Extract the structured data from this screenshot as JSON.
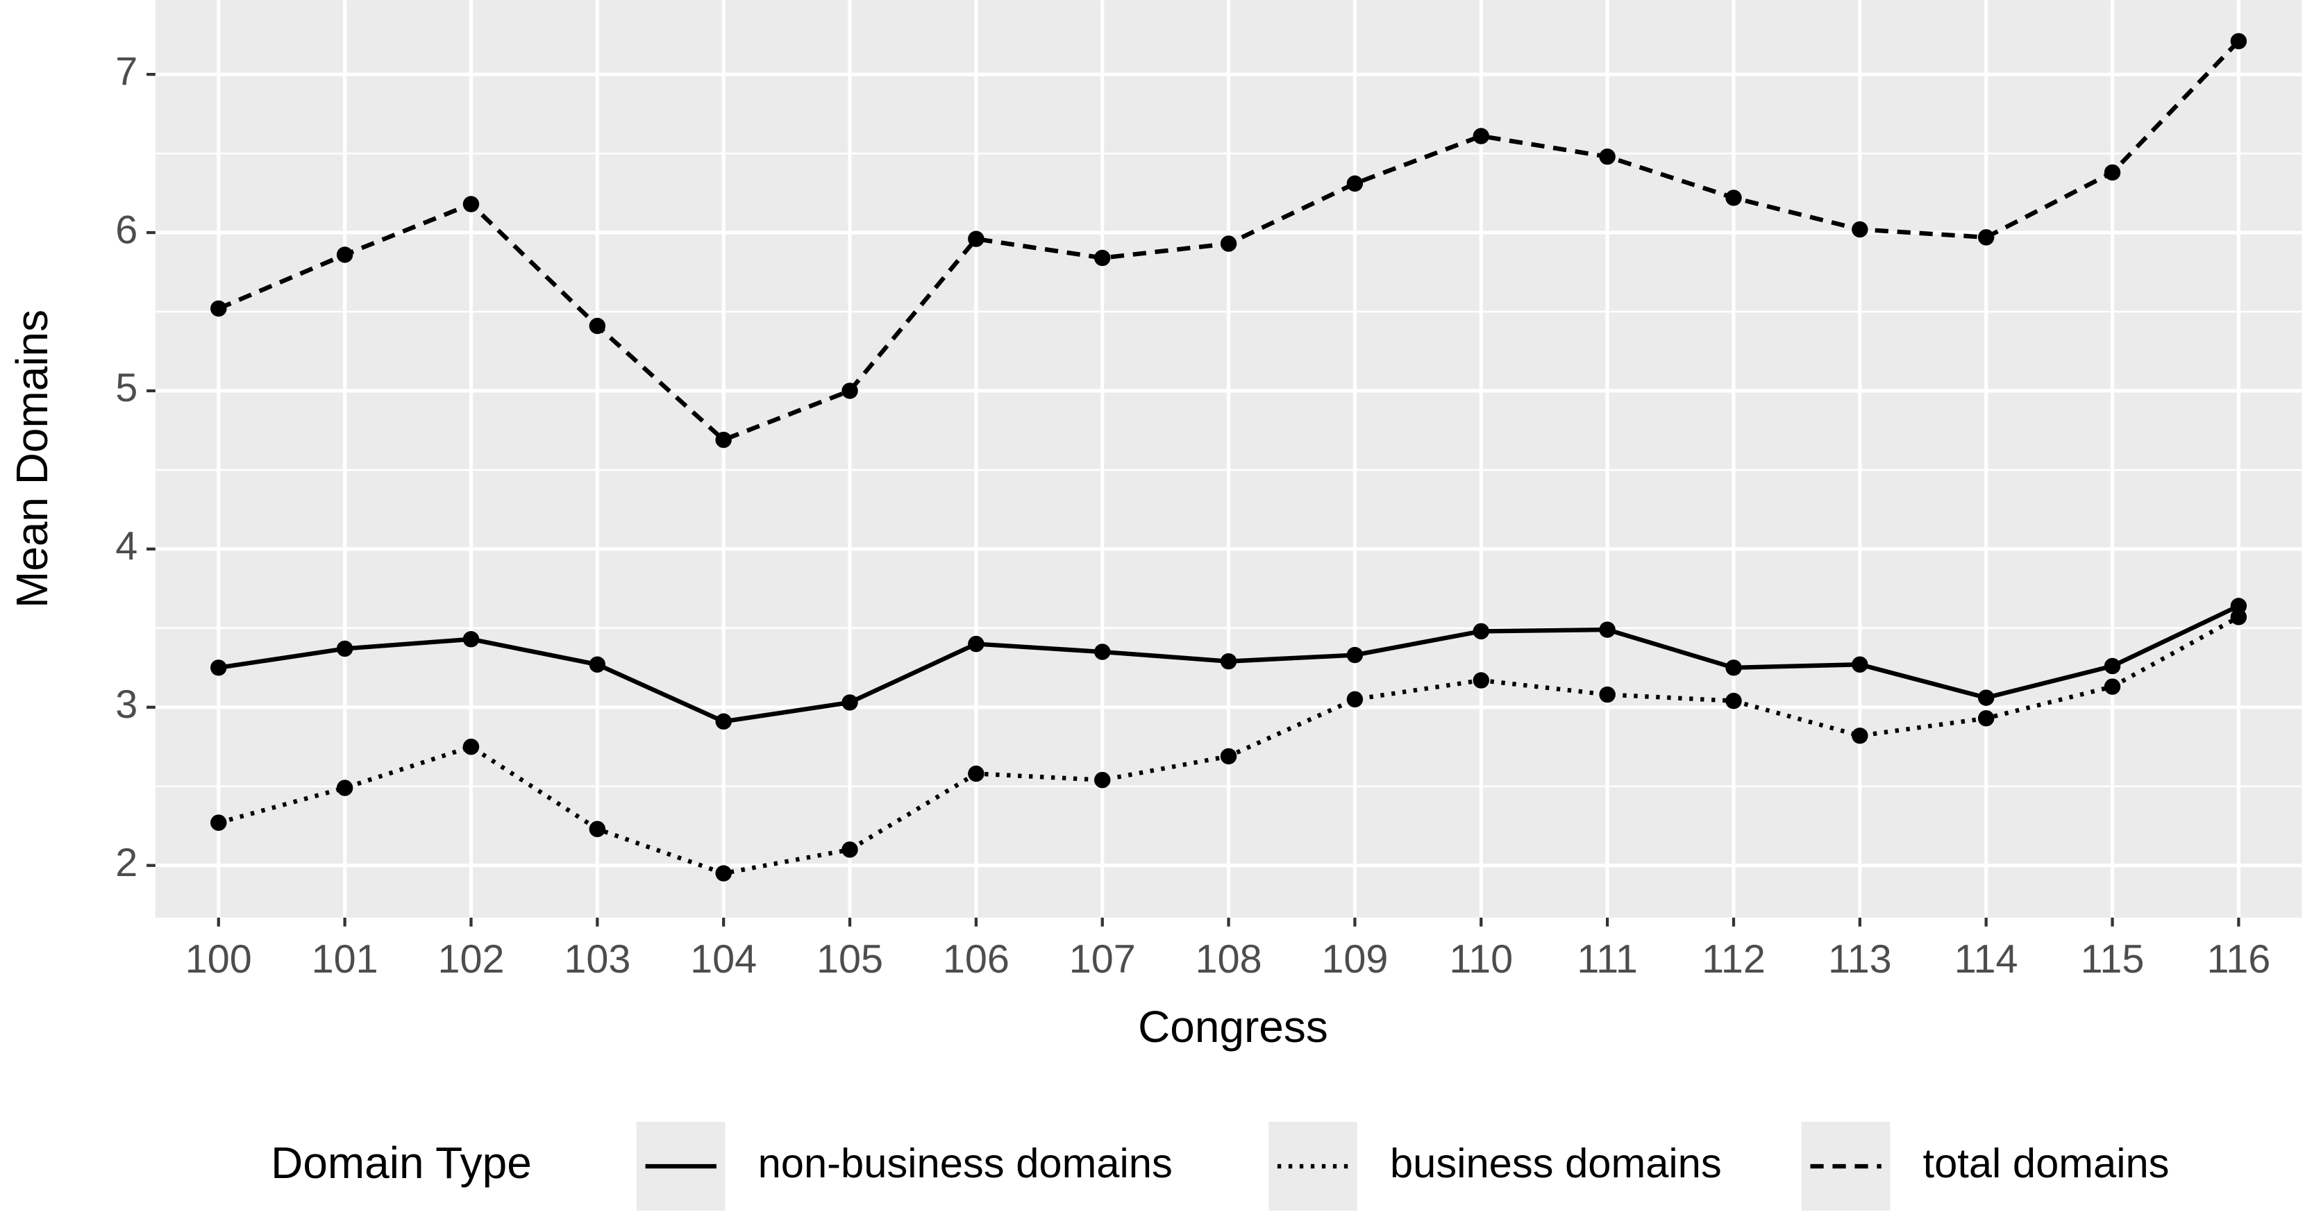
{
  "chart_data": {
    "type": "line",
    "x_label": "Congress",
    "y_label": "Mean Domains",
    "categories": [
      "100",
      "101",
      "102",
      "103",
      "104",
      "105",
      "106",
      "107",
      "108",
      "109",
      "110",
      "111",
      "112",
      "113",
      "114",
      "115",
      "116"
    ],
    "series": [
      {
        "name": "non-business domains",
        "color": "#000000",
        "linetype": "solid",
        "values": [
          3.25,
          3.37,
          3.43,
          3.27,
          2.91,
          3.03,
          3.4,
          3.35,
          3.29,
          3.33,
          3.48,
          3.49,
          3.25,
          3.27,
          3.06,
          3.26,
          3.64
        ]
      },
      {
        "name": "business domains",
        "color": "#000000",
        "linetype": "dotted",
        "values": [
          2.27,
          2.49,
          2.75,
          2.23,
          1.95,
          2.1,
          2.58,
          2.54,
          2.69,
          3.05,
          3.17,
          3.08,
          3.04,
          2.82,
          2.93,
          3.13,
          3.57
        ]
      },
      {
        "name": "total domains",
        "color": "#000000",
        "linetype": "dashed",
        "values": [
          5.52,
          5.86,
          6.18,
          5.41,
          4.69,
          5.0,
          5.96,
          5.84,
          5.93,
          6.31,
          6.61,
          6.48,
          6.22,
          6.02,
          5.97,
          6.38,
          7.21
        ]
      }
    ],
    "ylim": [
      1.67,
      7.47
    ],
    "yticks": [
      2,
      3,
      4,
      5,
      6,
      7
    ],
    "grid": true,
    "legend_title": "Domain Type",
    "legend_position": "bottom"
  }
}
